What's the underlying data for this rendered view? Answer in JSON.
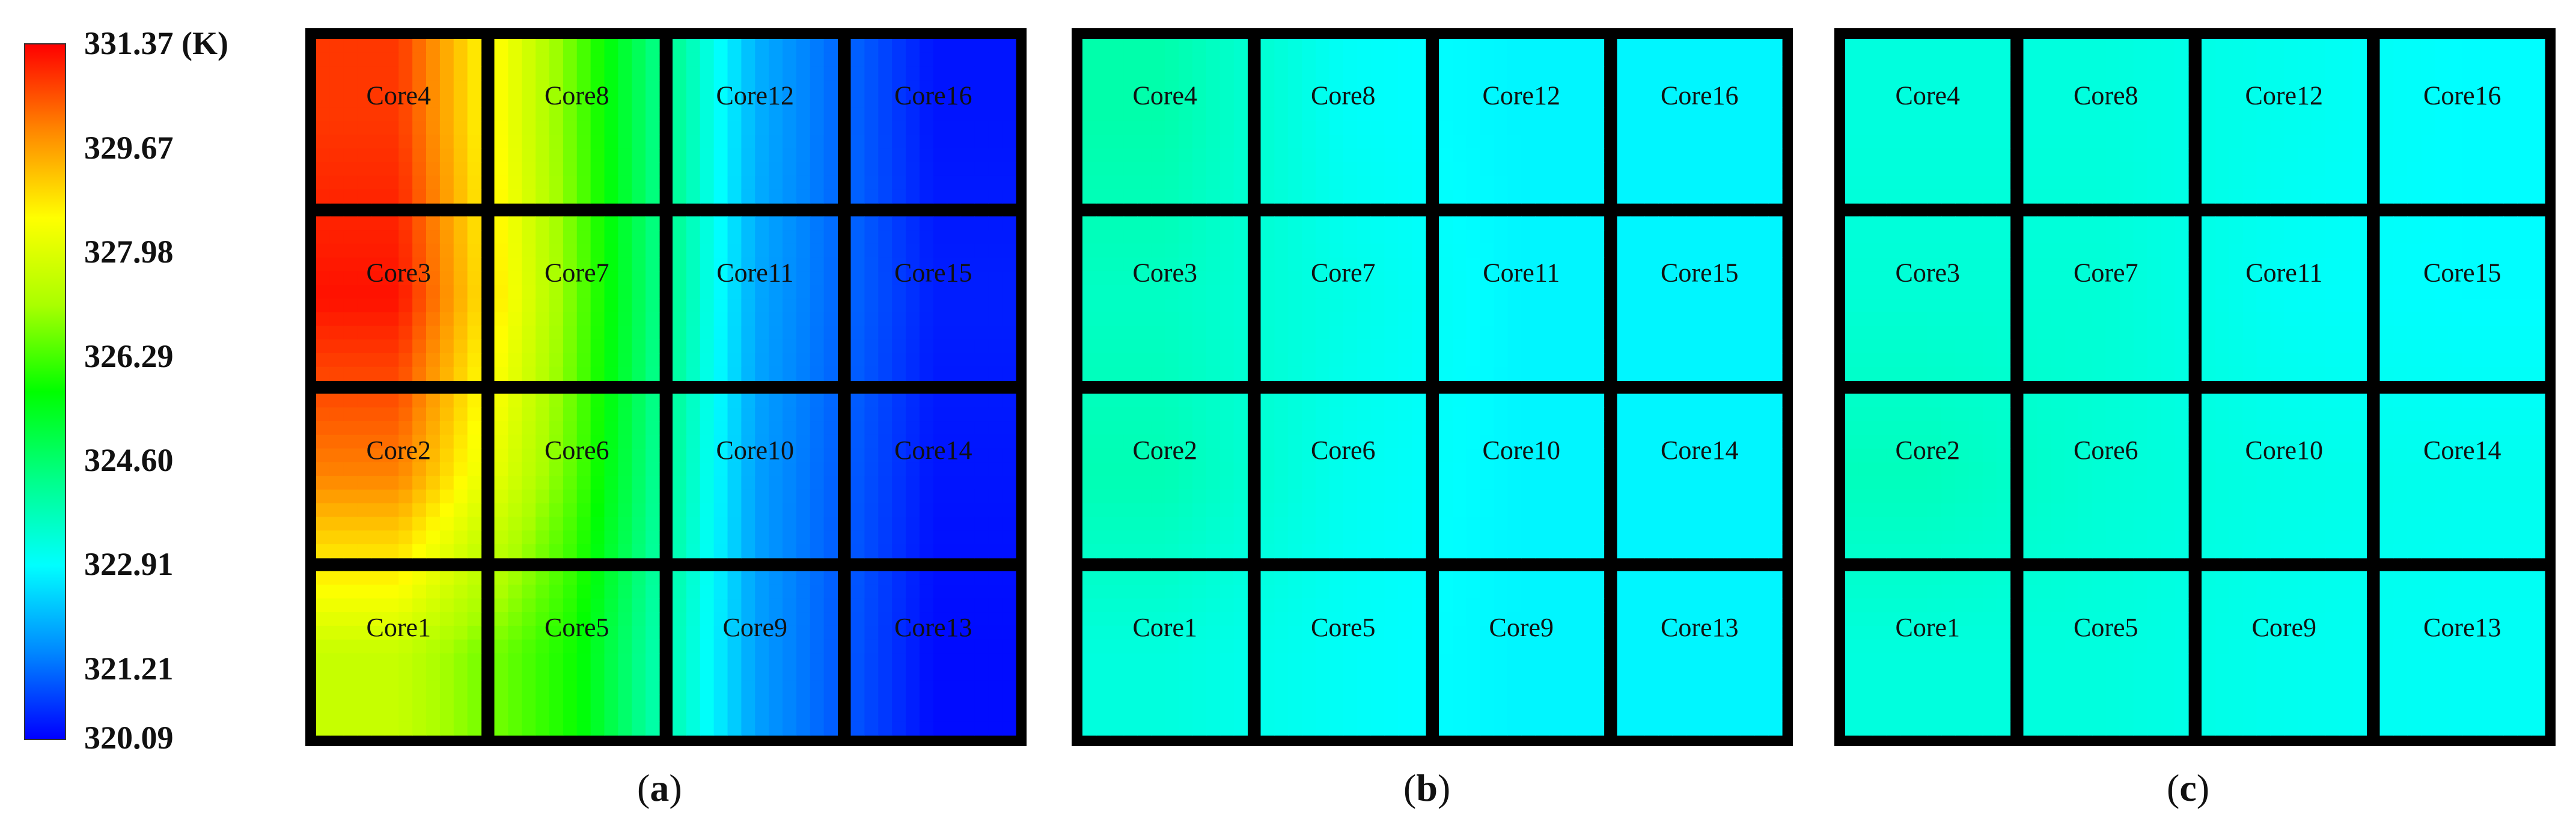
{
  "colorbar": {
    "min": 320.09,
    "max": 331.37,
    "ticks": [
      "331.37 (K)",
      "329.67",
      "327.98",
      "326.29",
      "324.60",
      "322.91",
      "321.21",
      "320.09"
    ],
    "tick_values": [
      331.37,
      329.67,
      327.98,
      326.29,
      324.6,
      322.91,
      321.21,
      320.09
    ],
    "colormap": [
      "#0000ff",
      "#0088ff",
      "#00ffff",
      "#00ff88",
      "#00ff00",
      "#aaff00",
      "#ffff00",
      "#ff8800",
      "#ff0000"
    ]
  },
  "chart_data": [
    {
      "type": "heatmap",
      "caption": "(a)",
      "caption_letter": "a",
      "grid_rows": [
        "row4",
        "row3",
        "row2",
        "row1"
      ],
      "cores": [
        {
          "label": "Core4",
          "row": 0,
          "col": 0
        },
        {
          "label": "Core8",
          "row": 0,
          "col": 1
        },
        {
          "label": "Core12",
          "row": 0,
          "col": 2
        },
        {
          "label": "Core16",
          "row": 0,
          "col": 3
        },
        {
          "label": "Core3",
          "row": 1,
          "col": 0
        },
        {
          "label": "Core7",
          "row": 1,
          "col": 1
        },
        {
          "label": "Core11",
          "row": 1,
          "col": 2
        },
        {
          "label": "Core15",
          "row": 1,
          "col": 3
        },
        {
          "label": "Core2",
          "row": 2,
          "col": 0
        },
        {
          "label": "Core6",
          "row": 2,
          "col": 1
        },
        {
          "label": "Core10",
          "row": 2,
          "col": 2
        },
        {
          "label": "Core14",
          "row": 2,
          "col": 3
        },
        {
          "label": "Core1",
          "row": 3,
          "col": 0
        },
        {
          "label": "Core5",
          "row": 3,
          "col": 1
        },
        {
          "label": "Core9",
          "row": 3,
          "col": 2
        },
        {
          "label": "Core13",
          "row": 3,
          "col": 3
        }
      ],
      "temperature_by_core_K": [
        [
          330.8,
          326.5,
          322.0,
          320.3
        ],
        [
          331.2,
          326.6,
          321.9,
          320.4
        ],
        [
          330.0,
          326.4,
          321.8,
          320.3
        ],
        [
          327.6,
          325.8,
          321.8,
          320.2
        ]
      ]
    },
    {
      "type": "heatmap",
      "caption": "(b)",
      "caption_letter": "b",
      "cores": [
        {
          "label": "Core4",
          "row": 0,
          "col": 0
        },
        {
          "label": "Core8",
          "row": 0,
          "col": 1
        },
        {
          "label": "Core12",
          "row": 0,
          "col": 2
        },
        {
          "label": "Core16",
          "row": 0,
          "col": 3
        },
        {
          "label": "Core3",
          "row": 1,
          "col": 0
        },
        {
          "label": "Core7",
          "row": 1,
          "col": 1
        },
        {
          "label": "Core11",
          "row": 1,
          "col": 2
        },
        {
          "label": "Core15",
          "row": 1,
          "col": 3
        },
        {
          "label": "Core2",
          "row": 2,
          "col": 0
        },
        {
          "label": "Core6",
          "row": 2,
          "col": 1
        },
        {
          "label": "Core10",
          "row": 2,
          "col": 2
        },
        {
          "label": "Core14",
          "row": 2,
          "col": 3
        },
        {
          "label": "Core1",
          "row": 3,
          "col": 0
        },
        {
          "label": "Core5",
          "row": 3,
          "col": 1
        },
        {
          "label": "Core9",
          "row": 3,
          "col": 2
        },
        {
          "label": "Core13",
          "row": 3,
          "col": 3
        }
      ],
      "temperature_by_core_K": [
        [
          323.9,
          323.0,
          322.8,
          322.8
        ],
        [
          323.6,
          323.2,
          322.8,
          322.8
        ],
        [
          323.8,
          323.1,
          322.8,
          322.8
        ],
        [
          323.3,
          323.0,
          322.8,
          322.8
        ]
      ]
    },
    {
      "type": "heatmap",
      "caption": "(c)",
      "caption_letter": "c",
      "cores": [
        {
          "label": "Core4",
          "row": 0,
          "col": 0
        },
        {
          "label": "Core8",
          "row": 0,
          "col": 1
        },
        {
          "label": "Core12",
          "row": 0,
          "col": 2
        },
        {
          "label": "Core16",
          "row": 0,
          "col": 3
        },
        {
          "label": "Core3",
          "row": 1,
          "col": 0
        },
        {
          "label": "Core7",
          "row": 1,
          "col": 1
        },
        {
          "label": "Core11",
          "row": 1,
          "col": 2
        },
        {
          "label": "Core15",
          "row": 1,
          "col": 3
        },
        {
          "label": "Core2",
          "row": 2,
          "col": 0
        },
        {
          "label": "Core6",
          "row": 2,
          "col": 1
        },
        {
          "label": "Core10",
          "row": 2,
          "col": 2
        },
        {
          "label": "Core14",
          "row": 2,
          "col": 3
        },
        {
          "label": "Core1",
          "row": 3,
          "col": 0
        },
        {
          "label": "Core5",
          "row": 3,
          "col": 1
        },
        {
          "label": "Core9",
          "row": 3,
          "col": 2
        },
        {
          "label": "Core13",
          "row": 3,
          "col": 3
        }
      ],
      "temperature_by_core_K": [
        [
          323.3,
          323.3,
          323.1,
          322.9
        ],
        [
          323.4,
          323.4,
          323.0,
          322.9
        ],
        [
          323.7,
          323.4,
          323.2,
          323.1
        ],
        [
          323.3,
          323.3,
          323.1,
          323.0
        ]
      ]
    }
  ]
}
